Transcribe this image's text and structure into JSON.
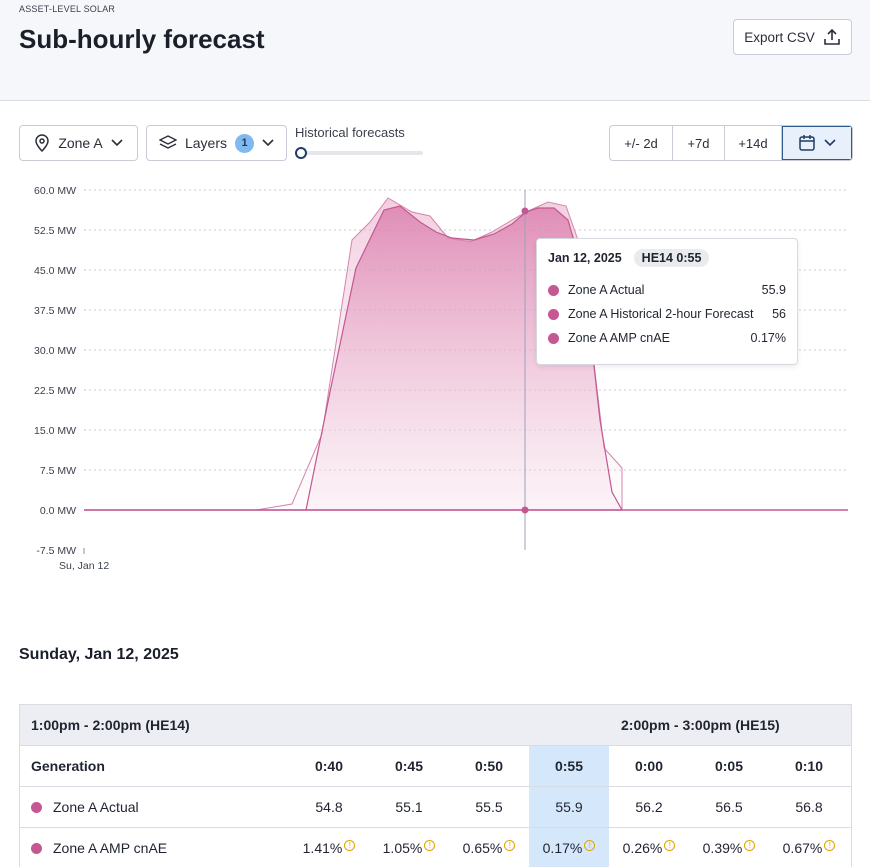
{
  "header": {
    "eyebrow": "ASSET-LEVEL SOLAR",
    "title": "Sub-hourly forecast",
    "export_label": "Export CSV"
  },
  "controls": {
    "zone_label": "Zone A",
    "layers_label": "Layers",
    "layers_count": "1",
    "historical_label": "Historical forecasts",
    "range_buttons": [
      "+/- 2d",
      "+7d",
      "+14d"
    ]
  },
  "chart_data": {
    "type": "area",
    "ylabel": "MW",
    "y_ticks": [
      "60.0 MW",
      "52.5 MW",
      "45.0 MW",
      "37.5 MW",
      "30.0 MW",
      "22.5 MW",
      "15.0 MW",
      "7.5 MW",
      "0.0 MW",
      "-7.5 MW"
    ],
    "ylim": [
      -7.5,
      60
    ],
    "x_tick_label": "Su, Jan 12",
    "series": [
      {
        "name": "Zone A Actual",
        "color": "#c35892"
      },
      {
        "name": "Zone A Historical 2-hour Forecast",
        "color": "#c35892"
      }
    ]
  },
  "tooltip": {
    "date": "Jan 12, 2025",
    "time_chip": "HE14 0:55",
    "rows": [
      {
        "label": "Zone A Actual",
        "value": "55.9"
      },
      {
        "label": "Zone A Historical 2-hour Forecast",
        "value": "56"
      },
      {
        "label": "Zone A AMP cnAE",
        "value": "0.17%"
      }
    ]
  },
  "table": {
    "date_heading": "Sunday, Jan 12, 2025",
    "band_left": "1:00pm - 2:00pm (HE14)",
    "band_right": "2:00pm - 3:00pm (HE15)",
    "header_label": "Generation",
    "columns": [
      "0:40",
      "0:45",
      "0:50",
      "0:55",
      "0:00",
      "0:05",
      "0:10"
    ],
    "rows": [
      {
        "label": "Zone A Actual",
        "values": [
          "54.8",
          "55.1",
          "55.5",
          "55.9",
          "56.2",
          "56.5",
          "56.8"
        ]
      },
      {
        "label": "Zone A AMP cnAE",
        "values": [
          "1.41%",
          "1.05%",
          "0.65%",
          "0.17%",
          "0.26%",
          "0.39%",
          "0.67%"
        ]
      }
    ]
  }
}
